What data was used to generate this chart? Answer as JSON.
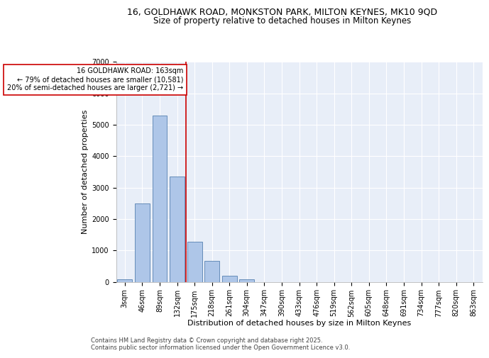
{
  "title_line1": "16, GOLDHAWK ROAD, MONKSTON PARK, MILTON KEYNES, MK10 9QD",
  "title_line2": "Size of property relative to detached houses in Milton Keynes",
  "xlabel": "Distribution of detached houses by size in Milton Keynes",
  "ylabel": "Number of detached properties",
  "categories": [
    "3sqm",
    "46sqm",
    "89sqm",
    "132sqm",
    "175sqm",
    "218sqm",
    "261sqm",
    "304sqm",
    "347sqm",
    "390sqm",
    "433sqm",
    "476sqm",
    "519sqm",
    "562sqm",
    "605sqm",
    "648sqm",
    "691sqm",
    "734sqm",
    "777sqm",
    "820sqm",
    "863sqm"
  ],
  "values": [
    70,
    2500,
    5300,
    3350,
    1270,
    660,
    200,
    70,
    0,
    0,
    0,
    0,
    0,
    0,
    0,
    0,
    0,
    0,
    0,
    0,
    0
  ],
  "bar_color": "#aec6e8",
  "bar_edge_color": "#5580b0",
  "vline_color": "#cc0000",
  "vline_x_idx": 3.5,
  "annotation_text": "16 GOLDHAWK ROAD: 163sqm\n← 79% of detached houses are smaller (10,581)\n20% of semi-detached houses are larger (2,721) →",
  "annotation_box_edgecolor": "#cc0000",
  "annotation_box_facecolor": "white",
  "ylim": [
    0,
    7000
  ],
  "yticks": [
    0,
    1000,
    2000,
    3000,
    4000,
    5000,
    6000,
    7000
  ],
  "background_color": "#e8eef8",
  "grid_color": "white",
  "footnote": "Contains HM Land Registry data © Crown copyright and database right 2025.\nContains public sector information licensed under the Open Government Licence v3.0.",
  "title_fontsize": 9,
  "subtitle_fontsize": 8.5,
  "axis_label_fontsize": 8,
  "tick_fontsize": 7,
  "annotation_fontsize": 7,
  "footnote_fontsize": 6
}
